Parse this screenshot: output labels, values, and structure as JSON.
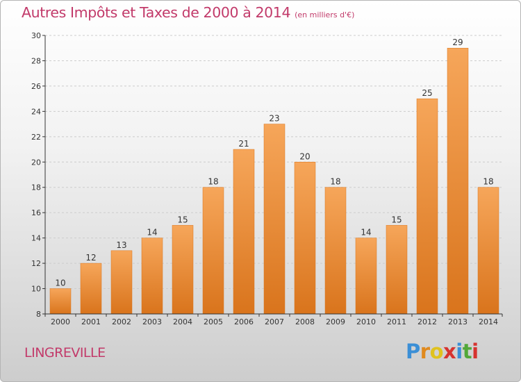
{
  "title": "Autres Impôts et Taxes de 2000 à 2014",
  "unit": "(en milliers d'€)",
  "commune": "LINGREVILLE",
  "logo": {
    "letters": [
      "P",
      "r",
      "o",
      "x",
      "i",
      "t",
      "i"
    ],
    "colors": [
      "#3b8fd6",
      "#e08a1e",
      "#e0c21e",
      "#d6332f",
      "#3b8fd6",
      "#53a83a",
      "#d6332f"
    ]
  },
  "colors": {
    "accent": "#c23a6a",
    "bar_top": "#f6a65a",
    "bar_bottom": "#d9741c",
    "grid": "#cccccc",
    "axis": "#333333"
  },
  "chart_data": {
    "type": "bar",
    "categories": [
      "2000",
      "2001",
      "2002",
      "2003",
      "2004",
      "2005",
      "2006",
      "2007",
      "2008",
      "2009",
      "2010",
      "2011",
      "2012",
      "2013",
      "2014"
    ],
    "values": [
      10,
      12,
      13,
      14,
      15,
      18,
      21,
      23,
      20,
      18,
      14,
      15,
      25,
      29,
      18
    ],
    "ylim": [
      8,
      30
    ],
    "yticks": [
      8,
      10,
      12,
      14,
      16,
      18,
      20,
      22,
      24,
      26,
      28,
      30
    ],
    "grid": true,
    "legend": "none"
  }
}
